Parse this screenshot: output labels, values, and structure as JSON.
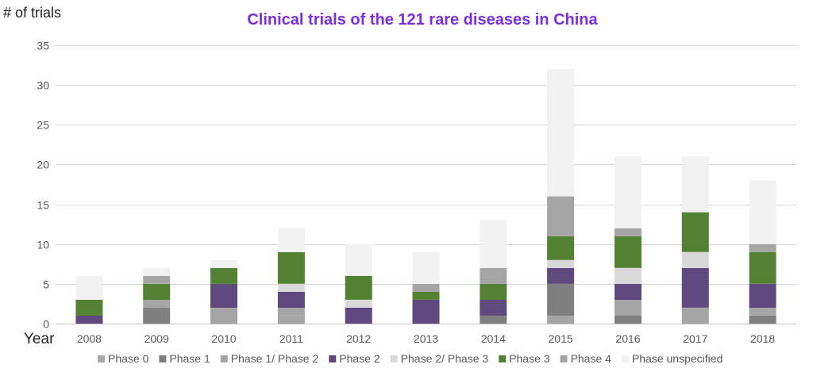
{
  "chart_data": {
    "type": "bar",
    "stacked": true,
    "title": "Clinical trials of the 121 rare diseases in China",
    "ylabel": "# of trials",
    "xlabel": "Year",
    "ylim": [
      0,
      35
    ],
    "yticks": [
      0,
      5,
      10,
      15,
      20,
      25,
      30,
      35
    ],
    "grid": true,
    "legend_position": "bottom",
    "categories": [
      "2008",
      "2009",
      "2010",
      "2011",
      "2012",
      "2013",
      "2014",
      "2015",
      "2016",
      "2017",
      "2018"
    ],
    "series": [
      {
        "name": "Phase 0",
        "color": "#a6a6a6",
        "values": [
          0,
          0,
          0,
          1,
          0,
          0,
          0,
          1,
          0,
          0,
          0
        ]
      },
      {
        "name": "Phase 1",
        "color": "#7f7f7f",
        "values": [
          0,
          2,
          0,
          0,
          0,
          0,
          1,
          4,
          1,
          0,
          1
        ]
      },
      {
        "name": "Phase 1/ Phase 2",
        "color": "#a5a5a5",
        "values": [
          0,
          1,
          2,
          1,
          0,
          0,
          0,
          0,
          2,
          2,
          1
        ]
      },
      {
        "name": "Phase 2",
        "color": "#5e4a7e",
        "values": [
          1,
          0,
          3,
          2,
          2,
          3,
          2,
          2,
          2,
          5,
          3
        ]
      },
      {
        "name": "Phase 2/ Phase 3",
        "color": "#d9d9d9",
        "values": [
          0,
          0,
          0,
          1,
          1,
          0,
          0,
          1,
          2,
          2,
          0
        ]
      },
      {
        "name": "Phase 3",
        "color": "#548235",
        "values": [
          2,
          2,
          2,
          4,
          3,
          1,
          2,
          3,
          4,
          5,
          4
        ]
      },
      {
        "name": "Phase 4",
        "color": "#a5a5a5",
        "values": [
          0,
          1,
          0,
          0,
          0,
          1,
          2,
          5,
          1,
          0,
          1
        ]
      },
      {
        "name": "Phase unspecified",
        "color": "#f2f2f2",
        "values": [
          3,
          1,
          1,
          3,
          4,
          4,
          6,
          16,
          9,
          7,
          8
        ]
      }
    ]
  }
}
